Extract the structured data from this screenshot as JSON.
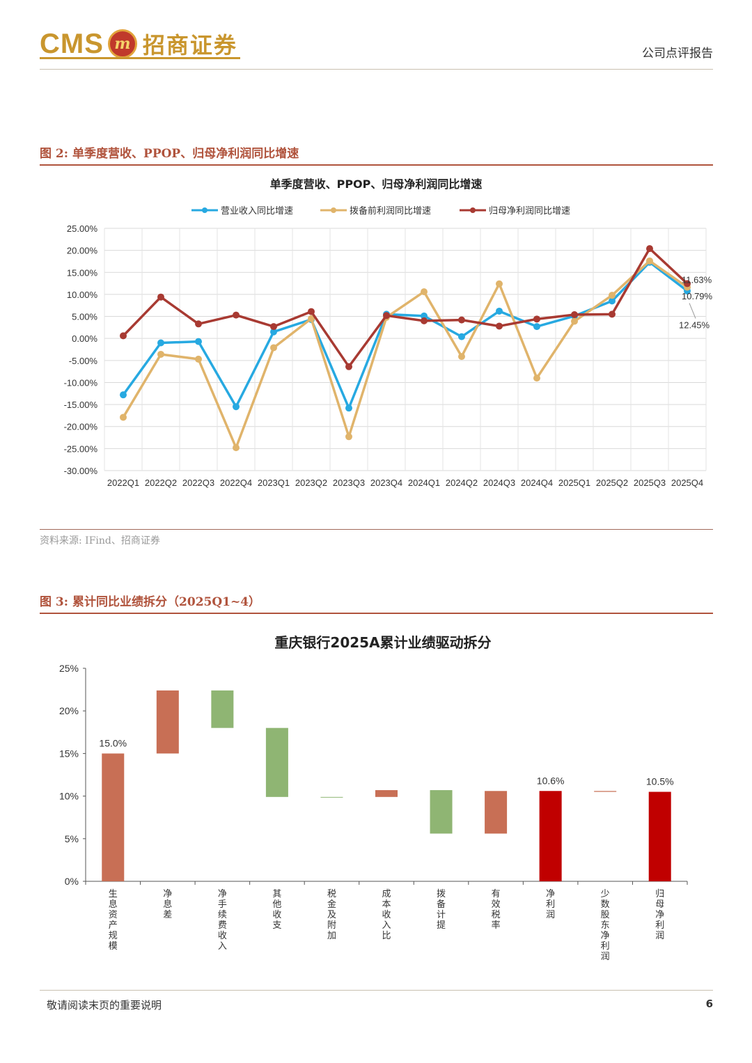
{
  "header": {
    "logo_en": "CMS",
    "logo_mark": "m",
    "logo_cn": "招商证券",
    "report_type": "公司点评报告"
  },
  "figure2": {
    "caption_num": "图 2:",
    "caption": "单季度营收、PPOP、归母净利润同比增速",
    "source": "资料来源: IFind、招商证券"
  },
  "figure3": {
    "caption_num": "图 3:",
    "caption": "累计同比业绩拆分（2025Q1~4）"
  },
  "footer": {
    "note": "敬请阅读末页的重要说明",
    "page": "6"
  },
  "chart_data": [
    {
      "type": "line",
      "title": "单季度营收、PPOP、归母净利润同比增速",
      "legend_position": "top",
      "grid": true,
      "x": [
        "2022Q1",
        "2022Q2",
        "2022Q3",
        "2022Q4",
        "2023Q1",
        "2023Q2",
        "2023Q3",
        "2023Q4",
        "2024Q1",
        "2024Q2",
        "2024Q3",
        "2024Q4",
        "2025Q1",
        "2025Q2",
        "2025Q3",
        "2025Q4"
      ],
      "yticks": [
        "25.00%",
        "20.00%",
        "15.00%",
        "10.00%",
        "5.00%",
        "0.00%",
        "-5.00%",
        "-10.00%",
        "-15.00%",
        "-20.00%",
        "-25.00%",
        "-30.00%"
      ],
      "ylim": [
        -30,
        25
      ],
      "series": [
        {
          "name": "营业收入同比增速",
          "color": "#27a9e1",
          "values": [
            -12.8,
            -1.0,
            -0.7,
            -15.5,
            1.5,
            4.3,
            -15.8,
            5.5,
            5.1,
            0.4,
            6.2,
            2.7,
            5.1,
            8.5,
            17.3,
            10.79
          ]
        },
        {
          "name": "拨备前利润同比增速",
          "color": "#e0b46b",
          "values": [
            -17.9,
            -3.6,
            -4.7,
            -24.8,
            -2.1,
            4.5,
            -22.3,
            4.8,
            10.6,
            -4.1,
            12.4,
            -9.0,
            3.9,
            9.8,
            17.6,
            11.63
          ]
        },
        {
          "name": "归母净利润同比增速",
          "color": "#a83a32",
          "values": [
            0.6,
            9.4,
            3.3,
            5.3,
            2.7,
            6.1,
            -6.4,
            5.2,
            4.0,
            4.2,
            2.8,
            4.4,
            5.4,
            5.5,
            20.4,
            12.45
          ]
        }
      ],
      "annotations": [
        "11.63%",
        "10.79%",
        "12.45%"
      ]
    },
    {
      "type": "bar",
      "subtype": "waterfall",
      "title": "重庆银行2025A累计业绩驱动拆分",
      "yticks": [
        "25%",
        "20%",
        "15%",
        "10%",
        "5%",
        "0%"
      ],
      "ylim": [
        0,
        25
      ],
      "categories": [
        "生息资产规模",
        "净息差",
        "净手续费收入",
        "其他收支",
        "税金及附加",
        "成本收入比",
        "拨备计提",
        "有效税率",
        "净利润",
        "少数股东净利润",
        "归母净利润"
      ],
      "bars": [
        {
          "start": 0,
          "end": 15.0,
          "color": "#c86f55",
          "label": "15.0%"
        },
        {
          "start": 15.0,
          "end": 22.4,
          "color": "#c86f55",
          "label": ""
        },
        {
          "start": 22.4,
          "end": 18.0,
          "color": "#8fb573",
          "label": ""
        },
        {
          "start": 18.0,
          "end": 9.9,
          "color": "#8fb573",
          "label": ""
        },
        {
          "start": 9.9,
          "end": 9.85,
          "color": "#8fb573",
          "label": ""
        },
        {
          "start": 9.9,
          "end": 10.7,
          "color": "#c86f55",
          "label": ""
        },
        {
          "start": 10.7,
          "end": 5.6,
          "color": "#8fb573",
          "label": ""
        },
        {
          "start": 5.6,
          "end": 10.6,
          "color": "#c86f55",
          "label": ""
        },
        {
          "start": 0,
          "end": 10.6,
          "color": "#c00000",
          "label": "10.6%"
        },
        {
          "start": 10.6,
          "end": 10.5,
          "color": "#c86f55",
          "label": ""
        },
        {
          "start": 0,
          "end": 10.5,
          "color": "#c00000",
          "label": "10.5%"
        }
      ]
    }
  ]
}
